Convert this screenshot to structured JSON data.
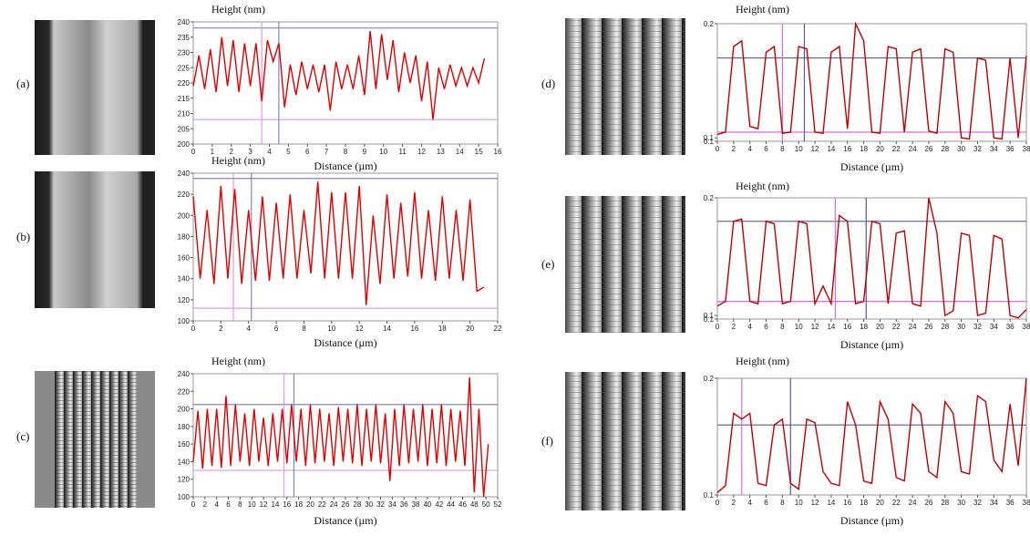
{
  "chart_data": [
    {
      "type": "line",
      "label": "(a)",
      "y_label": "Height (nm)",
      "x_label": "Distance (µm)",
      "color": "#e00000",
      "x": [
        0,
        0.3,
        0.6,
        0.9,
        1.2,
        1.5,
        1.8,
        2.1,
        2.4,
        2.7,
        3.0,
        3.3,
        3.6,
        3.9,
        4.2,
        4.5,
        4.8,
        5.1,
        5.4,
        5.7,
        6.0,
        6.3,
        6.6,
        6.9,
        7.2,
        7.5,
        7.8,
        8.1,
        8.4,
        8.7,
        9.0,
        9.3,
        9.6,
        9.9,
        10.2,
        10.5,
        10.8,
        11.1,
        11.4,
        11.7,
        12.0,
        12.3,
        12.6,
        12.9,
        13.2,
        13.5,
        13.8,
        14.1,
        14.4,
        14.7,
        15.0,
        15.3
      ],
      "values": [
        219,
        229,
        218,
        231,
        217,
        235,
        219,
        234,
        217,
        233,
        219,
        233,
        214,
        234,
        227,
        233,
        212,
        226,
        216,
        227,
        218,
        226,
        217,
        226,
        211,
        227,
        218,
        226,
        218,
        229,
        216,
        237,
        218,
        236,
        221,
        234,
        217,
        230,
        220,
        229,
        214,
        227,
        208,
        225,
        218,
        226,
        219,
        225,
        219,
        225,
        220,
        228
      ],
      "xlim": [
        0,
        16
      ],
      "xticks": [
        0,
        1,
        2,
        3,
        4,
        5,
        6,
        7,
        8,
        9,
        10,
        11,
        12,
        13,
        14,
        15,
        16
      ],
      "ylim": [
        200,
        240
      ],
      "yticks": [
        200,
        205,
        210,
        215,
        220,
        225,
        230,
        235,
        240
      ],
      "cursors": [
        {
          "axis": "y",
          "value": 238,
          "color": "#8484c8"
        },
        {
          "axis": "y",
          "value": 208,
          "color": "#dc9ce0"
        },
        {
          "axis": "x",
          "value": 3.6,
          "color": "#dc9ce0"
        },
        {
          "axis": "x",
          "value": 4.5,
          "color": "#8484c8"
        }
      ]
    },
    {
      "type": "line",
      "label": "(b)",
      "y_label": "Height (nm)",
      "x_label": "Distance (µm)",
      "color": "#e00000",
      "x": [
        0,
        0.5,
        1,
        1.5,
        2,
        2.5,
        3,
        3.5,
        4,
        4.5,
        5,
        5.5,
        6,
        6.5,
        7,
        7.5,
        8,
        8.5,
        9,
        9.5,
        10,
        10.5,
        11,
        11.5,
        12,
        12.5,
        13,
        13.5,
        14,
        14.5,
        15,
        15.5,
        16,
        16.5,
        17,
        17.5,
        18,
        18.5,
        19,
        19.5,
        20,
        20.5,
        21
      ],
      "values": [
        218,
        140,
        205,
        135,
        228,
        140,
        225,
        135,
        205,
        138,
        218,
        138,
        212,
        140,
        220,
        140,
        205,
        145,
        232,
        140,
        222,
        140,
        222,
        140,
        228,
        115,
        200,
        135,
        220,
        140,
        212,
        142,
        222,
        140,
        205,
        138,
        218,
        140,
        205,
        138,
        215,
        128,
        132
      ],
      "xlim": [
        0,
        22
      ],
      "xticks": [
        0,
        2,
        4,
        6,
        8,
        10,
        12,
        14,
        16,
        18,
        20,
        22
      ],
      "ylim": [
        100,
        240
      ],
      "yticks": [
        100,
        120,
        140,
        160,
        180,
        200,
        220,
        240
      ],
      "cursors": [
        {
          "axis": "y",
          "value": 235,
          "color": "#8484c8"
        },
        {
          "axis": "y",
          "value": 112,
          "color": "#dc9ce0"
        },
        {
          "axis": "x",
          "value": 2.9,
          "color": "#dc9ce0"
        },
        {
          "axis": "x",
          "value": 4.2,
          "color": "#8484c8"
        }
      ]
    },
    {
      "type": "line",
      "label": "(c)",
      "y_label": "Height (nm)",
      "x_label": "Distance (µm)",
      "color": "#e00000",
      "x": [
        0,
        0.8,
        1.6,
        2.4,
        3.2,
        4,
        4.8,
        5.6,
        6.4,
        7.2,
        8,
        8.8,
        9.6,
        10.4,
        11.2,
        12,
        12.8,
        13.6,
        14.4,
        15.2,
        16,
        16.8,
        17.6,
        18.4,
        19.2,
        20,
        20.8,
        21.6,
        22.4,
        23.2,
        24,
        24.8,
        25.6,
        26.4,
        27.2,
        28,
        28.8,
        29.6,
        30.4,
        31.2,
        32,
        32.8,
        33.6,
        34.4,
        35.2,
        36,
        36.8,
        37.6,
        38.4,
        39.2,
        40,
        40.8,
        41.6,
        42.4,
        43.2,
        44,
        44.8,
        45.6,
        46.4,
        47.2,
        48,
        48.8,
        49.6,
        50.4
      ],
      "values": [
        140,
        198,
        132,
        200,
        135,
        200,
        133,
        215,
        135,
        205,
        140,
        195,
        135,
        200,
        140,
        190,
        135,
        195,
        140,
        200,
        138,
        205,
        140,
        200,
        135,
        205,
        138,
        200,
        140,
        195,
        135,
        202,
        140,
        200,
        138,
        205,
        135,
        200,
        140,
        205,
        138,
        195,
        118,
        200,
        135,
        205,
        138,
        200,
        140,
        205,
        135,
        200,
        138,
        205,
        135,
        200,
        140,
        198,
        135,
        236,
        105,
        200,
        100,
        160
      ],
      "xlim": [
        0,
        52
      ],
      "xticks": [
        0,
        2,
        4,
        6,
        8,
        10,
        12,
        14,
        16,
        18,
        20,
        22,
        24,
        26,
        28,
        30,
        32,
        34,
        36,
        38,
        40,
        42,
        44,
        46,
        48,
        50,
        52
      ],
      "ylim": [
        100,
        240
      ],
      "yticks": [
        100,
        120,
        140,
        160,
        180,
        200,
        220,
        240
      ],
      "cursors": [
        {
          "axis": "y",
          "value": 205,
          "color": "#8484c8"
        },
        {
          "axis": "y",
          "value": 130,
          "color": "#dc9ce0"
        },
        {
          "axis": "x",
          "value": 15.5,
          "color": "#dc9ce0"
        },
        {
          "axis": "x",
          "value": 17.2,
          "color": "#8484c8"
        }
      ]
    },
    {
      "type": "line",
      "label": "(d)",
      "y_label": "Height (nm)",
      "x_label": "Distance (µm)",
      "color": "#c00000",
      "x": [
        0,
        1,
        2,
        3,
        4,
        5,
        6,
        7,
        8,
        9,
        10,
        11,
        12,
        13,
        14,
        15,
        16,
        17,
        18,
        19,
        20,
        21,
        22,
        23,
        24,
        25,
        26,
        27,
        28,
        29,
        30,
        31,
        32,
        33,
        34,
        35,
        36,
        37,
        38
      ],
      "values": [
        0.103,
        0.105,
        0.18,
        0.185,
        0.11,
        0.108,
        0.175,
        0.18,
        0.104,
        0.105,
        0.18,
        0.178,
        0.105,
        0.104,
        0.175,
        0.18,
        0.108,
        0.2,
        0.185,
        0.105,
        0.104,
        0.18,
        0.178,
        0.105,
        0.175,
        0.178,
        0.106,
        0.104,
        0.178,
        0.175,
        0.1,
        0.099,
        0.17,
        0.168,
        0.1,
        0.099,
        0.17,
        0.1,
        0.172
      ],
      "xlim": [
        0,
        38
      ],
      "xticks": [
        0,
        2,
        4,
        6,
        8,
        10,
        12,
        14,
        16,
        18,
        20,
        22,
        24,
        26,
        28,
        30,
        32,
        34,
        36,
        38
      ],
      "ylim": [
        0.097,
        0.2
      ],
      "yticks": [
        {
          "value": 0.097,
          "label": "0.1"
        },
        0.1,
        0.2
      ],
      "cursors": [
        {
          "axis": "y",
          "value": 0.17,
          "color": "#5a5a9a"
        },
        {
          "axis": "y",
          "value": 0.105,
          "color": "#dc6ce0"
        },
        {
          "axis": "x",
          "value": 8,
          "color": "#dc6ce0"
        },
        {
          "axis": "x",
          "value": 10.7,
          "color": "#5a5a9a"
        }
      ]
    },
    {
      "type": "line",
      "label": "(e)",
      "y_label": "Height (nm)",
      "x_label": "Distance (µm)",
      "color": "#c00000",
      "x": [
        0,
        1,
        2,
        3,
        4,
        5,
        6,
        7,
        8,
        9,
        10,
        11,
        12,
        13,
        14,
        15,
        16,
        17,
        18,
        19,
        20,
        21,
        22,
        23,
        24,
        25,
        26,
        27,
        28,
        29,
        30,
        31,
        32,
        33,
        34,
        35,
        36,
        37,
        38
      ],
      "values": [
        0.108,
        0.112,
        0.18,
        0.182,
        0.112,
        0.11,
        0.18,
        0.178,
        0.11,
        0.112,
        0.18,
        0.178,
        0.11,
        0.125,
        0.11,
        0.185,
        0.18,
        0.11,
        0.112,
        0.18,
        0.178,
        0.11,
        0.17,
        0.172,
        0.11,
        0.108,
        0.2,
        0.17,
        0.1,
        0.104,
        0.17,
        0.168,
        0.1,
        0.102,
        0.168,
        0.165,
        0.1,
        0.098,
        0.105
      ],
      "xlim": [
        0,
        38
      ],
      "xticks": [
        0,
        2,
        4,
        6,
        8,
        10,
        12,
        14,
        16,
        18,
        20,
        22,
        24,
        26,
        28,
        30,
        32,
        34,
        36,
        38
      ],
      "ylim": [
        0.097,
        0.2
      ],
      "yticks": [
        {
          "value": 0.097,
          "label": "0.1"
        },
        0.1,
        0.2
      ],
      "cursors": [
        {
          "axis": "y",
          "value": 0.18,
          "color": "#5a5a9a"
        },
        {
          "axis": "y",
          "value": 0.112,
          "color": "#dc6ce0"
        },
        {
          "axis": "x",
          "value": 14.5,
          "color": "#dc6ce0"
        },
        {
          "axis": "x",
          "value": 18.3,
          "color": "#5a5a9a"
        }
      ]
    },
    {
      "type": "line",
      "label": "(f)",
      "y_label": "Height (nm)",
      "x_label": "Distance (µm)",
      "color": "#c00000",
      "x": [
        0,
        1,
        2,
        3,
        4,
        5,
        6,
        7,
        8,
        9,
        10,
        11,
        12,
        13,
        14,
        15,
        16,
        17,
        18,
        19,
        20,
        21,
        22,
        23,
        24,
        25,
        26,
        27,
        28,
        29,
        30,
        31,
        32,
        33,
        34,
        35,
        36,
        37,
        38
      ],
      "values": [
        0.102,
        0.108,
        0.17,
        0.165,
        0.17,
        0.11,
        0.108,
        0.16,
        0.165,
        0.11,
        0.105,
        0.165,
        0.162,
        0.12,
        0.11,
        0.108,
        0.18,
        0.16,
        0.112,
        0.11,
        0.18,
        0.165,
        0.115,
        0.112,
        0.178,
        0.17,
        0.12,
        0.115,
        0.18,
        0.17,
        0.12,
        0.118,
        0.185,
        0.18,
        0.13,
        0.12,
        0.178,
        0.125,
        0.2
      ],
      "xlim": [
        0,
        38
      ],
      "xticks": [
        0,
        2,
        4,
        6,
        8,
        10,
        12,
        14,
        16,
        18,
        20,
        22,
        24,
        26,
        28,
        30,
        32,
        34,
        36,
        38
      ],
      "ylim": [
        0.1,
        0.2
      ],
      "yticks": [
        0.1,
        0.2
      ],
      "cursors": [
        {
          "axis": "y",
          "value": 0.16,
          "color": "#5a5a9a"
        },
        {
          "axis": "x",
          "value": 3,
          "color": "#dc6ce0"
        },
        {
          "axis": "x",
          "value": 9,
          "color": "#5a5a9a"
        }
      ]
    }
  ]
}
